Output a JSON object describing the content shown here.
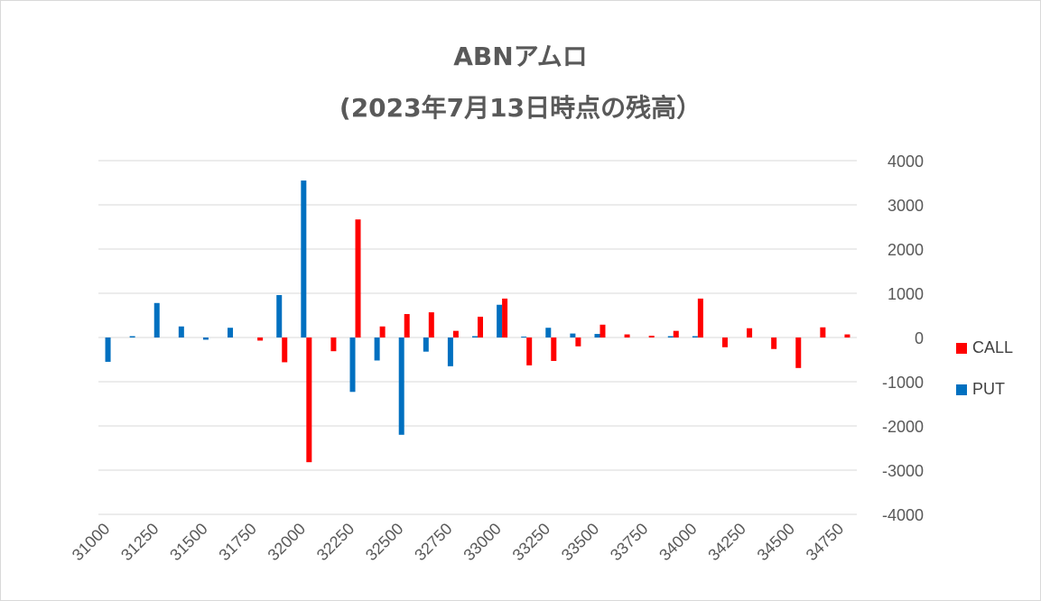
{
  "chart_data": {
    "type": "bar",
    "title": "ABNアムロ",
    "subtitle": "(2023年7月13日時点の残高）",
    "categories": [
      "31000",
      "31125",
      "31250",
      "31375",
      "31500",
      "31625",
      "31750",
      "31875",
      "32000",
      "32125",
      "32250",
      "32375",
      "32500",
      "32625",
      "32750",
      "32875",
      "33000",
      "33125",
      "33250",
      "33375",
      "33500",
      "33625",
      "33750",
      "33875",
      "34000",
      "34125",
      "34250",
      "34375",
      "34500",
      "34625",
      "34750"
    ],
    "x_tick_labels": [
      "31000",
      "31250",
      "31500",
      "31750",
      "32000",
      "32250",
      "32500",
      "32750",
      "33000",
      "33250",
      "33500",
      "33750",
      "34000",
      "34250",
      "34500",
      "34750"
    ],
    "y_tick_labels": [
      "4000",
      "3000",
      "2000",
      "1000",
      "0",
      "-1000",
      "-2000",
      "-3000",
      "-4000"
    ],
    "ylim": [
      -4000,
      4000
    ],
    "grid": true,
    "legend_position": "right",
    "series": [
      {
        "name": "PUT",
        "color": "#0070C0",
        "values": [
          -550,
          30,
          780,
          250,
          -50,
          220,
          0,
          960,
          3550,
          0,
          -1230,
          -520,
          -2200,
          -320,
          -650,
          30,
          740,
          20,
          220,
          90,
          80,
          0,
          0,
          30,
          30,
          0,
          0,
          0,
          0,
          0,
          0
        ]
      },
      {
        "name": "CALL",
        "color": "#FF0000",
        "values": [
          0,
          0,
          0,
          0,
          0,
          0,
          -70,
          -560,
          -2820,
          -310,
          2670,
          250,
          530,
          570,
          150,
          470,
          880,
          -630,
          -530,
          -200,
          290,
          70,
          40,
          150,
          880,
          -220,
          210,
          -260,
          -690,
          230,
          70
        ]
      }
    ]
  }
}
